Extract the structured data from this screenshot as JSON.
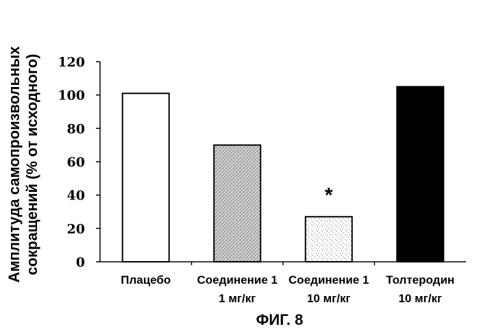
{
  "figure_caption": "ФИГ. 8",
  "chart_data": {
    "type": "bar",
    "title": "",
    "xlabel": "",
    "ylabel_lines": [
      "Амплитуда самопроизвольных",
      "сокращений (% от исходного)"
    ],
    "ylim": [
      0,
      120
    ],
    "yticks": [
      0,
      20,
      40,
      60,
      80,
      100,
      120
    ],
    "grid": false,
    "categories": [
      {
        "lines": [
          "Плацебо"
        ]
      },
      {
        "lines": [
          "Соединение 1",
          "1 мг/кг"
        ]
      },
      {
        "lines": [
          "Соединение 1",
          "10 мг/кг"
        ]
      },
      {
        "lines": [
          "Толтеродин",
          "10 мг/кг"
        ]
      }
    ],
    "values": [
      101,
      70,
      27,
      105
    ],
    "bar_fills": [
      "white",
      "dense-stipple",
      "sparse-stipple",
      "black"
    ],
    "annotations": [
      {
        "category_index": 2,
        "text": "*"
      }
    ]
  }
}
